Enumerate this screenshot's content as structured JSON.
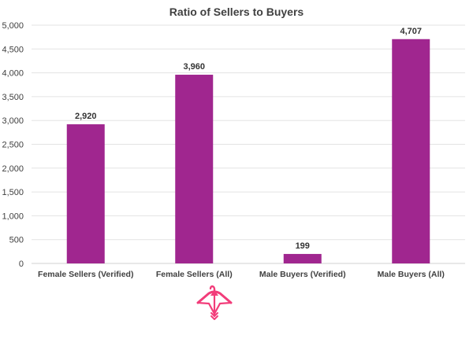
{
  "chart_data": {
    "type": "bar",
    "title": "Ratio of Sellers to Buyers",
    "categories": [
      "Female Sellers (Verified)",
      "Female Sellers (All)",
      "Male Buyers (Verified)",
      "Male Buyers (All)"
    ],
    "values": [
      2920,
      3960,
      199,
      4707
    ],
    "value_labels": [
      "2,920",
      "3,960",
      "199",
      "4,707"
    ],
    "y_ticks": [
      "0",
      "500",
      "1,000",
      "1,500",
      "2,000",
      "2,500",
      "3,000",
      "3,500",
      "4,000",
      "4,500",
      "5,000"
    ],
    "ylim": [
      0,
      5000
    ],
    "grid": true,
    "legend": "none",
    "bar_color": "#a0268f",
    "grid_color": "#e3e3e3"
  },
  "logo": {
    "name": "hanger-bow-logo-icon",
    "color": "#f23d7a"
  }
}
